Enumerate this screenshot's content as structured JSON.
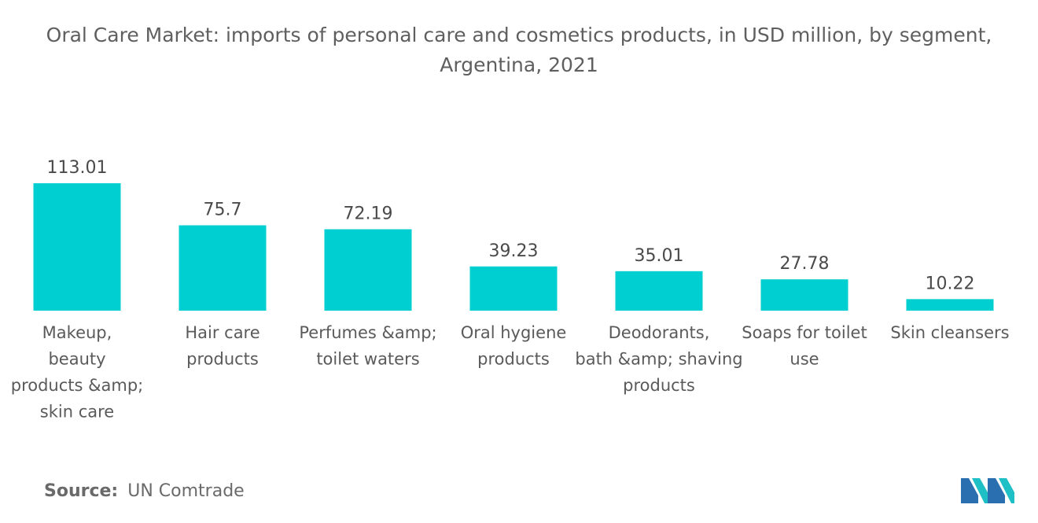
{
  "title": "Oral Care Market: imports of personal care and cosmetics products, in USD million, by segment, Argentina, 2021",
  "source": {
    "label": "Source:",
    "value": "UN Comtrade"
  },
  "logo": {
    "icon": "mordor-intelligence-logo-icon",
    "colors": [
      "#2a6fb0",
      "#1fbfc6"
    ]
  },
  "chart_data": {
    "type": "bar",
    "title": "Oral Care Market: imports of personal care and cosmetics products, in USD million, by segment, Argentina, 2021",
    "categories": [
      "Makeup, beauty products &amp; skin care",
      "Hair care products",
      "Perfumes &amp; toilet waters",
      "Oral hygiene products",
      "Deodorants, bath &amp; shaving products",
      "Soaps for toilet use",
      "Skin cleansers"
    ],
    "category_lines": [
      [
        "Makeup,",
        "beauty",
        "products &amp;",
        "skin care"
      ],
      [
        "Hair care",
        "products"
      ],
      [
        "Perfumes &amp;",
        "toilet waters"
      ],
      [
        "Oral hygiene",
        "products"
      ],
      [
        "Deodorants,",
        "bath &amp; shaving",
        "products"
      ],
      [
        "Soaps for toilet",
        "use"
      ],
      [
        "Skin cleansers"
      ]
    ],
    "values": [
      113.01,
      75.7,
      72.19,
      39.23,
      35.01,
      27.78,
      10.22
    ],
    "value_labels": [
      "113.01",
      "75.7",
      "72.19",
      "39.23",
      "35.01",
      "27.78",
      "10.22"
    ],
    "bar_color": "#00cfd1",
    "xlabel": "",
    "ylabel": "",
    "ylim": [
      0,
      113.01
    ],
    "grid": false,
    "legend": "none"
  }
}
